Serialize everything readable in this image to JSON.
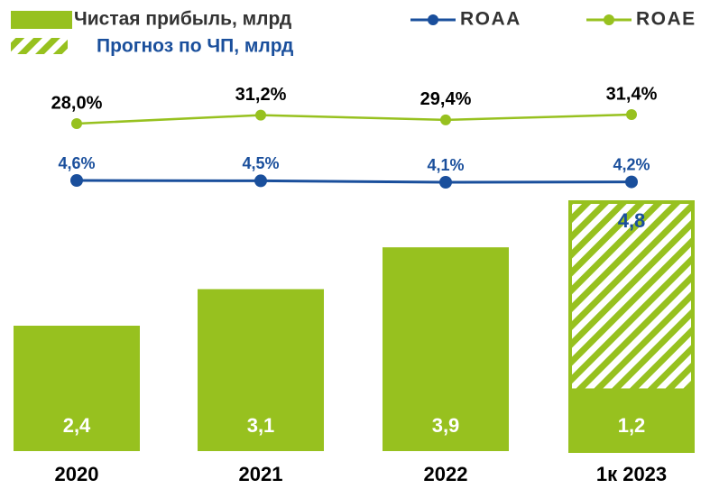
{
  "chart_data": {
    "type": "bar",
    "categories": [
      "2020",
      "2021",
      "2022",
      "1к 2023"
    ],
    "series": [
      {
        "name": "Чистая прибыль, млрд",
        "color": "#97c11f",
        "values": [
          2.4,
          3.1,
          3.9,
          1.2
        ],
        "value_labels": [
          "2,4",
          "3,1",
          "3,9",
          "1,2"
        ]
      },
      {
        "name": "Прогноз по ЧП, млрд",
        "color": "#97c11f",
        "pattern": "hatch",
        "values": [
          null,
          null,
          null,
          4.8
        ],
        "value_labels": [
          null,
          null,
          null,
          "4,8"
        ]
      },
      {
        "name": "ROAA",
        "type": "line",
        "color": "#1a4f9c",
        "values": [
          4.6,
          4.5,
          4.1,
          4.2
        ],
        "value_labels": [
          "4,6%",
          "4,5%",
          "4,1%",
          "4,2%"
        ]
      },
      {
        "name": "ROAE",
        "type": "line",
        "color": "#97c11f",
        "values": [
          28.0,
          31.2,
          29.4,
          31.4
        ],
        "value_labels": [
          "28,0%",
          "31,2%",
          "29,4%",
          "31,4%"
        ]
      }
    ]
  }
}
